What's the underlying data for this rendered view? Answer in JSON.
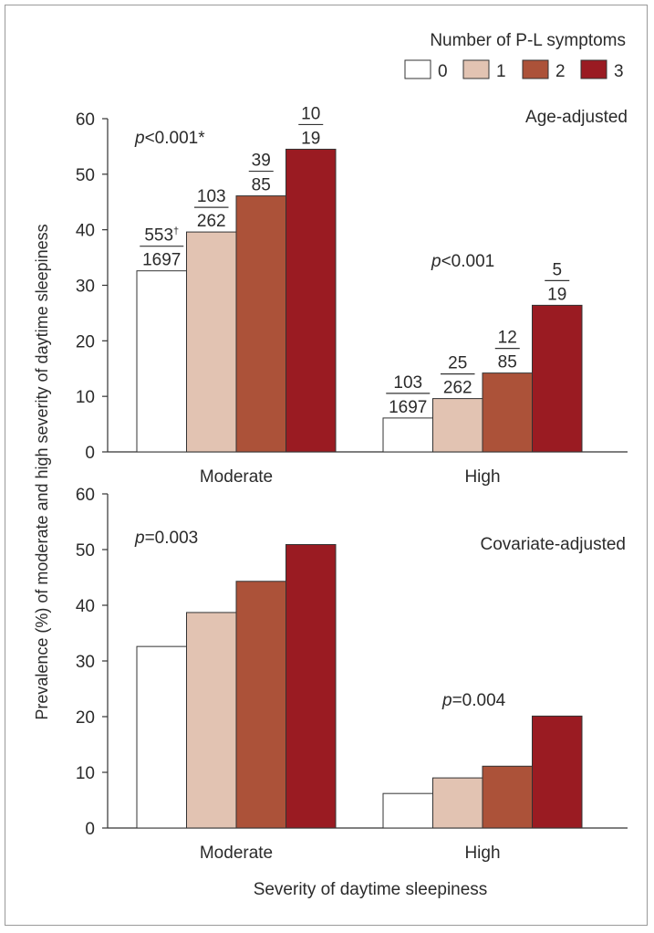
{
  "legend": {
    "title": "Number of P-L symptoms",
    "items": [
      {
        "label": "0",
        "color": "#ffffff"
      },
      {
        "label": "1",
        "color": "#e2c3b2"
      },
      {
        "label": "2",
        "color": "#ac5239"
      },
      {
        "label": "3",
        "color": "#9a1b22"
      }
    ]
  },
  "ylabel": "Prevalence (%) of moderate and high severity of daytime sleepiness",
  "xlabel": "Severity of daytime sleepiness",
  "chart_data": [
    {
      "type": "bar",
      "title": "Age-adjusted",
      "categories": [
        "Moderate",
        "High"
      ],
      "ylim": [
        0,
        60
      ],
      "yticks": [
        "0",
        "10",
        "20",
        "30",
        "40",
        "50",
        "60"
      ],
      "series": [
        {
          "name": "0",
          "values": [
            32.6,
            6.1
          ]
        },
        {
          "name": "1",
          "values": [
            39.6,
            9.6
          ]
        },
        {
          "name": "2",
          "values": [
            46.1,
            14.2
          ]
        },
        {
          "name": "3",
          "values": [
            54.5,
            26.4
          ]
        }
      ],
      "fractions": [
        [
          {
            "num": "553",
            "sup": "†",
            "den": "1697"
          },
          {
            "num": "103",
            "den": "262"
          },
          {
            "num": "39",
            "den": "85"
          },
          {
            "num": "10",
            "den": "19"
          }
        ],
        [
          {
            "num": "103",
            "den": "1697"
          },
          {
            "num": "25",
            "den": "262"
          },
          {
            "num": "12",
            "den": "85"
          },
          {
            "num": "5",
            "den": "19"
          }
        ]
      ],
      "pvalues": [
        {
          "italic": "p",
          "rest": "<0.001*"
        },
        {
          "italic": "p",
          "rest": "<0.001"
        }
      ]
    },
    {
      "type": "bar",
      "title": "Covariate-adjusted",
      "categories": [
        "Moderate",
        "High"
      ],
      "ylim": [
        0,
        60
      ],
      "yticks": [
        "0",
        "10",
        "20",
        "30",
        "40",
        "50",
        "60"
      ],
      "series": [
        {
          "name": "0",
          "values": [
            32.6,
            6.2
          ]
        },
        {
          "name": "1",
          "values": [
            38.7,
            9.0
          ]
        },
        {
          "name": "2",
          "values": [
            44.3,
            11.1
          ]
        },
        {
          "name": "3",
          "values": [
            50.9,
            20.1
          ]
        }
      ],
      "pvalues": [
        {
          "italic": "p",
          "rest": "=0.003"
        },
        {
          "italic": "p",
          "rest": "=0.004"
        }
      ]
    }
  ]
}
